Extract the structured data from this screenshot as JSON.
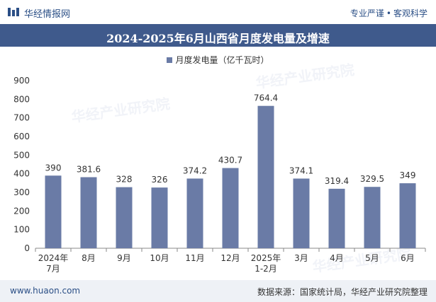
{
  "header": {
    "brand": "华经情报网",
    "tagline_left": "专业严谨",
    "tagline_right": "客观科学"
  },
  "footer": {
    "url": "www.huaon.com",
    "source": "数据来源：国家统计局，华经产业研究院整理"
  },
  "colors": {
    "bar": "#6a7ba6",
    "title_bg": "#3f5a8c",
    "brand": "#2b4f86"
  },
  "chart_data": {
    "type": "bar",
    "title": "2024-2025年6月山西省月度发电量及增速",
    "categories": [
      "2024年\n7月",
      "8月",
      "9月",
      "10月",
      "11月",
      "12月",
      "2025年\n1-2月",
      "3月",
      "4月",
      "5月",
      "6月"
    ],
    "series": [
      {
        "name": "月度发电量（亿千瓦时）",
        "values": [
          390,
          381.6,
          328,
          326,
          374.2,
          430.7,
          764.4,
          374.1,
          319.4,
          329.5,
          349
        ]
      }
    ],
    "data_labels": [
      "390",
      "381.6",
      "328",
      "326",
      "374.2",
      "430.7",
      "764.4",
      "374.1",
      "319.4",
      "329.5",
      "349"
    ],
    "yticks": [
      0,
      100,
      200,
      300,
      400,
      500,
      600,
      700,
      800,
      900
    ],
    "ylim": [
      0,
      900
    ],
    "xlabel": "",
    "ylabel": "",
    "legend_position": "top-center",
    "grid": false
  }
}
